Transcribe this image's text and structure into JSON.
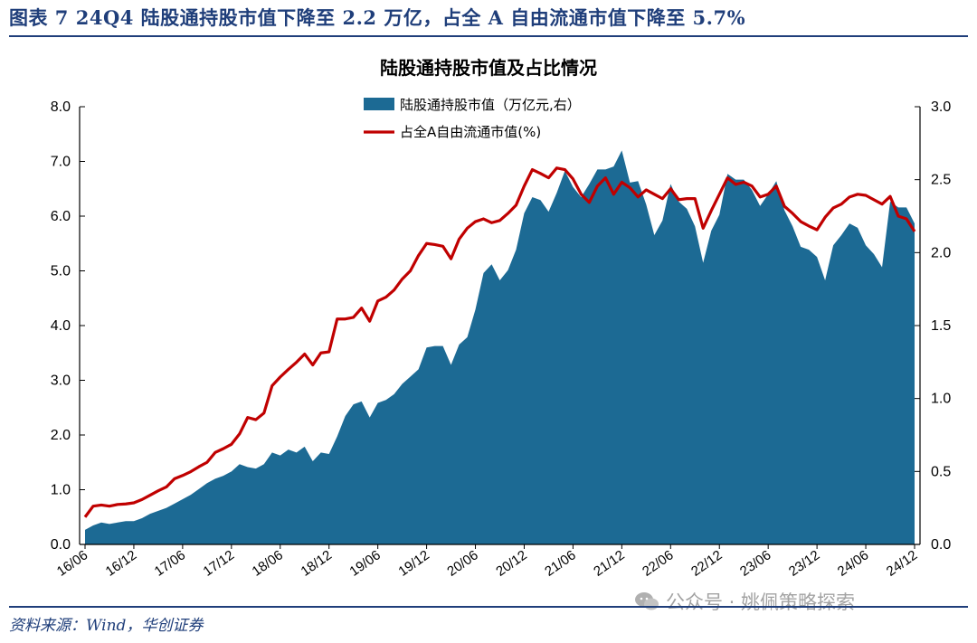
{
  "figure": {
    "title": "图表 7   24Q4 陆股通持股市值下降至 2.2 万亿，占全 A 自由流通市值下降至 5.7%",
    "source": "资料来源：Wind，华创证券",
    "watermark": "公众号 · 姚佩策略探索",
    "colors": {
      "area": "#1c6a94",
      "line": "#c00000",
      "header": "#1f3e7a"
    }
  },
  "chart_data": {
    "type": "area",
    "title": "陆股通持股市值及占比情况",
    "x": [
      "16/06",
      "16/07",
      "16/08",
      "16/09",
      "16/10",
      "16/11",
      "16/12",
      "17/01",
      "17/02",
      "17/03",
      "17/04",
      "17/05",
      "17/06",
      "17/07",
      "17/08",
      "17/09",
      "17/10",
      "17/11",
      "17/12",
      "18/01",
      "18/02",
      "18/03",
      "18/04",
      "18/05",
      "18/06",
      "18/07",
      "18/08",
      "18/09",
      "18/10",
      "18/11",
      "18/12",
      "19/01",
      "19/02",
      "19/03",
      "19/04",
      "19/05",
      "19/06",
      "19/07",
      "19/08",
      "19/09",
      "19/10",
      "19/11",
      "19/12",
      "20/01",
      "20/02",
      "20/03",
      "20/04",
      "20/05",
      "20/06",
      "20/07",
      "20/08",
      "20/09",
      "20/10",
      "20/11",
      "20/12",
      "21/01",
      "21/02",
      "21/03",
      "21/04",
      "21/05",
      "21/06",
      "21/07",
      "21/08",
      "21/09",
      "21/10",
      "21/11",
      "21/12",
      "22/01",
      "22/02",
      "22/03",
      "22/04",
      "22/05",
      "22/06",
      "22/07",
      "22/08",
      "22/09",
      "22/10",
      "22/11",
      "22/12",
      "23/01",
      "23/02",
      "23/03",
      "23/04",
      "23/05",
      "23/06",
      "23/07",
      "23/08",
      "23/09",
      "23/10",
      "23/11",
      "23/12",
      "24/01",
      "24/02",
      "24/03",
      "24/04",
      "24/05",
      "24/06",
      "24/07",
      "24/08",
      "24/09",
      "24/10",
      "24/11",
      "24/12"
    ],
    "xticks": [
      "16/06",
      "16/12",
      "17/06",
      "17/12",
      "18/06",
      "18/12",
      "19/06",
      "19/12",
      "20/06",
      "20/12",
      "21/06",
      "21/12",
      "22/06",
      "22/12",
      "23/06",
      "23/12",
      "24/06",
      "24/12"
    ],
    "series": [
      {
        "name": "陆股通持股市值（万亿元,右）",
        "type": "area",
        "axis": "right",
        "values": [
          0.1,
          0.13,
          0.15,
          0.14,
          0.15,
          0.16,
          0.16,
          0.18,
          0.21,
          0.23,
          0.25,
          0.28,
          0.31,
          0.34,
          0.38,
          0.42,
          0.45,
          0.47,
          0.5,
          0.55,
          0.53,
          0.52,
          0.55,
          0.63,
          0.61,
          0.65,
          0.63,
          0.67,
          0.57,
          0.63,
          0.62,
          0.74,
          0.88,
          0.96,
          0.98,
          0.87,
          0.97,
          0.99,
          1.03,
          1.1,
          1.15,
          1.2,
          1.35,
          1.36,
          1.36,
          1.23,
          1.37,
          1.42,
          1.61,
          1.86,
          1.92,
          1.81,
          1.88,
          2.02,
          2.27,
          2.38,
          2.36,
          2.28,
          2.41,
          2.56,
          2.45,
          2.38,
          2.47,
          2.57,
          2.57,
          2.59,
          2.7,
          2.48,
          2.49,
          2.33,
          2.12,
          2.22,
          2.47,
          2.35,
          2.3,
          2.18,
          1.93,
          2.15,
          2.26,
          2.54,
          2.5,
          2.5,
          2.43,
          2.32,
          2.4,
          2.49,
          2.29,
          2.18,
          2.04,
          2.02,
          1.97,
          1.81,
          2.05,
          2.12,
          2.2,
          2.17,
          2.05,
          1.99,
          1.9,
          2.35,
          2.31,
          2.31,
          2.2
        ]
      },
      {
        "name": "占全A自由流通市值(%)",
        "type": "line",
        "axis": "left",
        "values": [
          0.5,
          0.7,
          0.72,
          0.7,
          0.73,
          0.74,
          0.76,
          0.82,
          0.9,
          0.98,
          1.05,
          1.2,
          1.26,
          1.33,
          1.42,
          1.5,
          1.68,
          1.75,
          1.83,
          2.02,
          2.32,
          2.28,
          2.4,
          2.9,
          3.06,
          3.2,
          3.33,
          3.48,
          3.28,
          3.5,
          3.52,
          4.12,
          4.12,
          4.15,
          4.32,
          4.08,
          4.45,
          4.52,
          4.65,
          4.85,
          5.0,
          5.28,
          5.5,
          5.48,
          5.45,
          5.22,
          5.58,
          5.78,
          5.9,
          5.95,
          5.88,
          5.92,
          6.05,
          6.2,
          6.55,
          6.85,
          6.78,
          6.7,
          6.88,
          6.85,
          6.68,
          6.4,
          6.25,
          6.55,
          6.7,
          6.4,
          6.62,
          6.52,
          6.35,
          6.48,
          6.4,
          6.32,
          6.5,
          6.3,
          6.32,
          6.32,
          5.78,
          6.1,
          6.4,
          6.7,
          6.58,
          6.62,
          6.55,
          6.35,
          6.4,
          6.55,
          6.18,
          6.05,
          5.9,
          5.82,
          5.75,
          5.98,
          6.15,
          6.22,
          6.35,
          6.4,
          6.38,
          6.3,
          6.22,
          6.36,
          6.0,
          5.95,
          5.72
        ]
      }
    ],
    "left_axis": {
      "ylim": [
        0,
        8
      ],
      "ticks": [
        "0.0",
        "1.0",
        "2.0",
        "3.0",
        "4.0",
        "5.0",
        "6.0",
        "7.0",
        "8.0"
      ]
    },
    "right_axis": {
      "ylim": [
        0,
        3
      ],
      "ticks": [
        "0.0",
        "0.5",
        "1.0",
        "1.5",
        "2.0",
        "2.5",
        "3.0"
      ]
    },
    "legend": [
      {
        "label": "陆股通持股市值（万亿元,右）",
        "marker": "area"
      },
      {
        "label": "占全A自由流通市值(%)",
        "marker": "line"
      }
    ],
    "legend_position": "top-left",
    "grid": false
  }
}
